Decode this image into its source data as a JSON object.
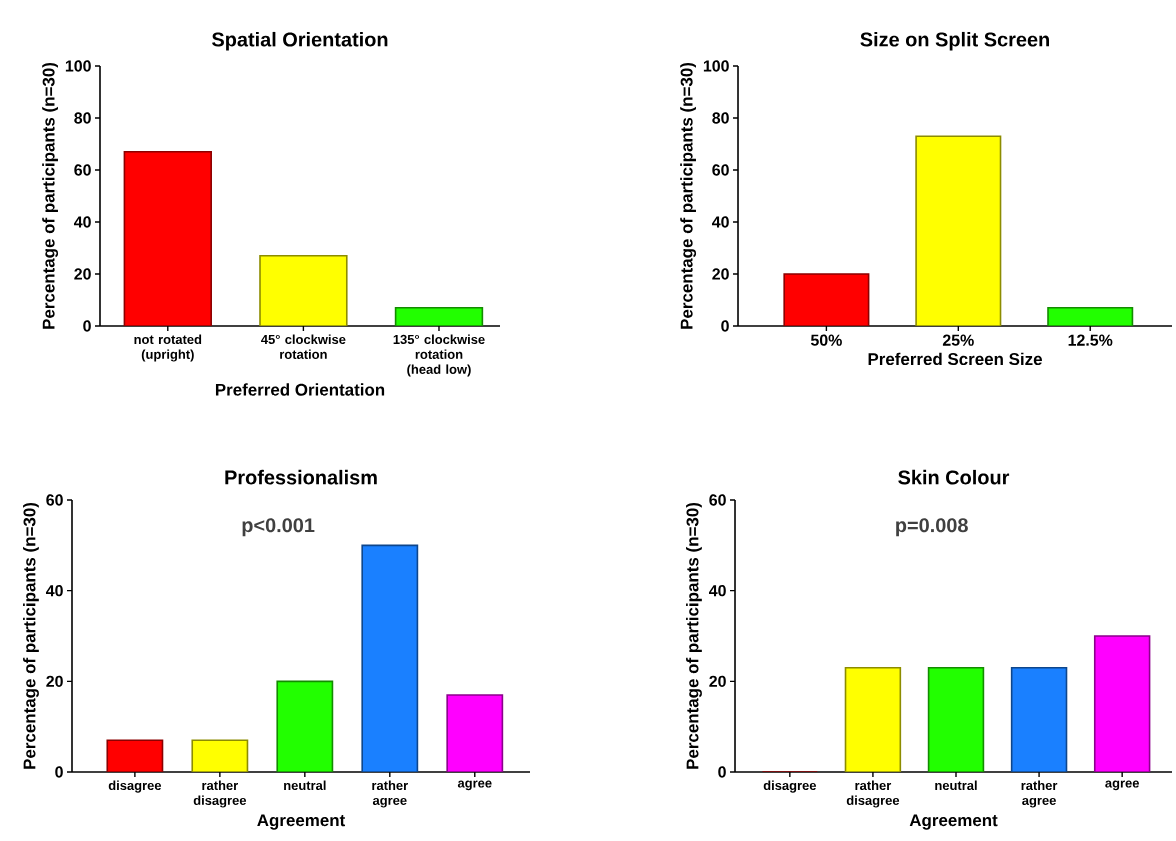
{
  "chart_data": [
    {
      "type": "bar",
      "title": "Spatial Orientation",
      "xlabel": "Preferred Orientation",
      "ylabel": "Percentage of participants (n=30)",
      "categories": [
        "not rotated (upright)",
        "45° clockwise rotation",
        "135° clockwise rotation (head low)"
      ],
      "values": [
        67,
        27,
        7
      ],
      "colors": [
        "#ff0000",
        "#ffff00",
        "#22ff00"
      ],
      "ylim": [
        0,
        100
      ],
      "yticks": [
        0,
        20,
        40,
        60,
        80,
        100
      ]
    },
    {
      "type": "bar",
      "title": "Size on Split Screen",
      "xlabel": "Preferred Screen Size",
      "ylabel": "Percentage of participants (n=30)",
      "categories": [
        "50%",
        "25%",
        "12.5%"
      ],
      "values": [
        20,
        73,
        7
      ],
      "colors": [
        "#ff0000",
        "#ffff00",
        "#22ff00"
      ],
      "ylim": [
        0,
        100
      ],
      "yticks": [
        0,
        20,
        40,
        60,
        80,
        100
      ]
    },
    {
      "type": "bar",
      "title": "Professionalism",
      "xlabel": "Agreement",
      "ylabel": "Percentage of participants (n=30)",
      "categories": [
        "disagree",
        "rather disagree",
        "neutral",
        "rather agree",
        "agree"
      ],
      "values": [
        7,
        7,
        20,
        50,
        17
      ],
      "colors": [
        "#ff0000",
        "#ffff00",
        "#22ff00",
        "#1a80ff",
        "#ff00ff"
      ],
      "ylim": [
        0,
        60
      ],
      "yticks": [
        0,
        20,
        40,
        60
      ],
      "annotations": [
        "p<0.001"
      ]
    },
    {
      "type": "bar",
      "title": "Skin Colour",
      "xlabel": "Agreement",
      "ylabel": "Percentage of participants (n=30)",
      "categories": [
        "disagree",
        "rather disagree",
        "neutral",
        "rather agree",
        "agree"
      ],
      "values": [
        0,
        23,
        23,
        23,
        30
      ],
      "colors": [
        "#ff0000",
        "#ffff00",
        "#22ff00",
        "#1a80ff",
        "#ff00ff"
      ],
      "ylim": [
        0,
        60
      ],
      "yticks": [
        0,
        20,
        40,
        60
      ],
      "annotations": [
        "p=0.008"
      ]
    }
  ]
}
